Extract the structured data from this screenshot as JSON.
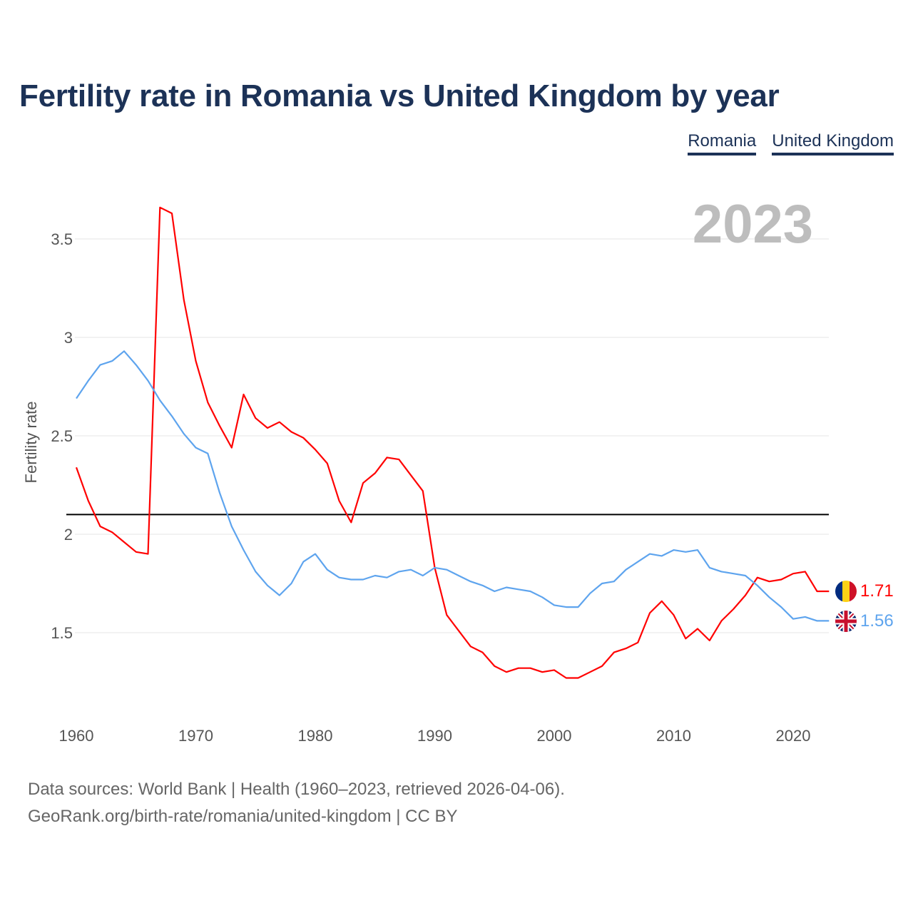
{
  "title": "Fertility rate in Romania vs United Kingdom by year",
  "legend": {
    "romania": "Romania",
    "uk": "United Kingdom"
  },
  "footer": {
    "line1": "Data sources: World Bank | Health (1960–2023, retrieved 2026-04-06).",
    "line2": "GeoRank.org/birth-rate/romania/united-kingdom | CC BY"
  },
  "chart_data": {
    "type": "line",
    "title": "Fertility rate in Romania vs United Kingdom by year",
    "xlabel": "",
    "ylabel": "Fertility rate",
    "year_label": "2023",
    "xlim": [
      1960,
      2023
    ],
    "ylim": [
      1.1,
      3.7
    ],
    "x_ticks": [
      1960,
      1970,
      1980,
      1990,
      2000,
      2010,
      2020
    ],
    "y_ticks": [
      1.5,
      2,
      2.5,
      3,
      3.5
    ],
    "y_tick_labels": [
      "1.5",
      "2",
      "2.5",
      "3",
      "3.5"
    ],
    "reference_line": 2.1,
    "grid": true,
    "legend_position": "top-right",
    "x": [
      1960,
      1961,
      1962,
      1963,
      1964,
      1965,
      1966,
      1967,
      1968,
      1969,
      1970,
      1971,
      1972,
      1973,
      1974,
      1975,
      1976,
      1977,
      1978,
      1979,
      1980,
      1981,
      1982,
      1983,
      1984,
      1985,
      1986,
      1987,
      1988,
      1989,
      1990,
      1991,
      1992,
      1993,
      1994,
      1995,
      1996,
      1997,
      1998,
      1999,
      2000,
      2001,
      2002,
      2003,
      2004,
      2005,
      2006,
      2007,
      2008,
      2009,
      2010,
      2011,
      2012,
      2013,
      2014,
      2015,
      2016,
      2017,
      2018,
      2019,
      2020,
      2021,
      2022,
      2023
    ],
    "series": [
      {
        "name": "Romania",
        "color": "#ff0000",
        "end_label": "1.71",
        "flag": "romania-flag",
        "values": [
          2.34,
          2.17,
          2.04,
          2.01,
          1.96,
          1.91,
          1.9,
          3.66,
          3.63,
          3.19,
          2.88,
          2.67,
          2.55,
          2.44,
          2.71,
          2.59,
          2.54,
          2.57,
          2.52,
          2.49,
          2.43,
          2.36,
          2.17,
          2.06,
          2.26,
          2.31,
          2.39,
          2.38,
          2.3,
          2.22,
          1.83,
          1.59,
          1.51,
          1.43,
          1.4,
          1.33,
          1.3,
          1.32,
          1.32,
          1.3,
          1.31,
          1.27,
          1.27,
          1.3,
          1.33,
          1.4,
          1.42,
          1.45,
          1.6,
          1.66,
          1.59,
          1.47,
          1.52,
          1.46,
          1.56,
          1.62,
          1.69,
          1.78,
          1.76,
          1.77,
          1.8,
          1.81,
          1.71,
          1.71
        ]
      },
      {
        "name": "United Kingdom",
        "color": "#5ea4ee",
        "end_label": "1.56",
        "flag": "uk-flag",
        "values": [
          2.69,
          2.78,
          2.86,
          2.88,
          2.93,
          2.86,
          2.78,
          2.68,
          2.6,
          2.51,
          2.44,
          2.41,
          2.21,
          2.04,
          1.92,
          1.81,
          1.74,
          1.69,
          1.75,
          1.86,
          1.9,
          1.82,
          1.78,
          1.77,
          1.77,
          1.79,
          1.78,
          1.81,
          1.82,
          1.79,
          1.83,
          1.82,
          1.79,
          1.76,
          1.74,
          1.71,
          1.73,
          1.72,
          1.71,
          1.68,
          1.64,
          1.63,
          1.63,
          1.7,
          1.75,
          1.76,
          1.82,
          1.86,
          1.9,
          1.89,
          1.92,
          1.91,
          1.92,
          1.83,
          1.81,
          1.8,
          1.79,
          1.74,
          1.68,
          1.63,
          1.57,
          1.58,
          1.56,
          1.56
        ]
      }
    ]
  }
}
